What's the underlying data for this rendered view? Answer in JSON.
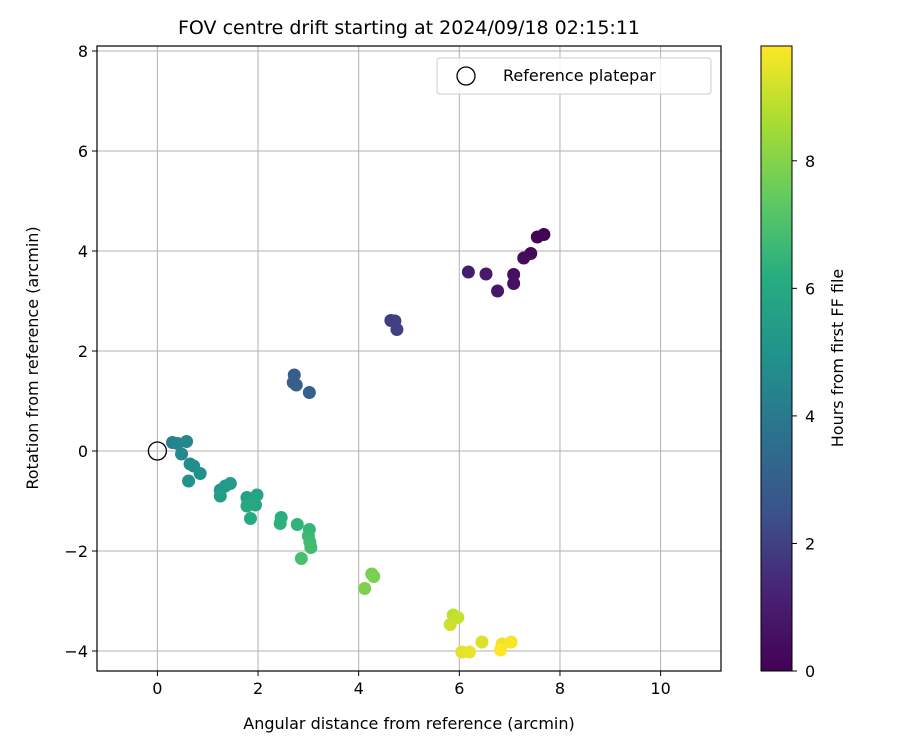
{
  "chart_data": {
    "type": "scatter",
    "title": "FOV centre drift starting at 2024/09/18 02:15:11",
    "xlabel": "Angular distance from reference (arcmin)",
    "ylabel": "Rotation from reference (arcmin)",
    "xlim": [
      -1.2,
      11.2
    ],
    "ylim": [
      -4.4,
      8.1
    ],
    "xticks": [
      0,
      2,
      4,
      6,
      8,
      10
    ],
    "yticks": [
      -4,
      -2,
      0,
      2,
      4,
      6,
      8
    ],
    "grid": true,
    "legend": {
      "placement": "top-right",
      "entries": [
        {
          "label": "Reference platepar",
          "marker": "open-circle"
        }
      ]
    },
    "reference_point": {
      "x": 0,
      "y": 0
    },
    "colorbar": {
      "label": "Hours from first FF file",
      "colormap": "viridis",
      "range": [
        0,
        9.8
      ],
      "ticks": [
        0,
        2,
        4,
        6,
        8
      ]
    },
    "points": [
      {
        "x": 7.68,
        "y": 4.33,
        "c": 0.05
      },
      {
        "x": 7.55,
        "y": 4.28,
        "c": 0.15
      },
      {
        "x": 7.42,
        "y": 3.95,
        "c": 0.3
      },
      {
        "x": 7.28,
        "y": 3.86,
        "c": 0.4
      },
      {
        "x": 7.08,
        "y": 3.53,
        "c": 0.5
      },
      {
        "x": 7.08,
        "y": 3.35,
        "c": 0.6
      },
      {
        "x": 6.76,
        "y": 3.2,
        "c": 0.8
      },
      {
        "x": 6.53,
        "y": 3.54,
        "c": 0.9
      },
      {
        "x": 6.18,
        "y": 3.58,
        "c": 1.0
      },
      {
        "x": 4.64,
        "y": 2.61,
        "c": 1.9
      },
      {
        "x": 4.72,
        "y": 2.6,
        "c": 1.95
      },
      {
        "x": 4.76,
        "y": 2.43,
        "c": 2.0
      },
      {
        "x": 2.72,
        "y": 1.52,
        "c": 2.9
      },
      {
        "x": 2.7,
        "y": 1.37,
        "c": 2.95
      },
      {
        "x": 2.76,
        "y": 1.32,
        "c": 3.0
      },
      {
        "x": 3.02,
        "y": 1.17,
        "c": 3.1
      },
      {
        "x": 0.3,
        "y": 0.17,
        "c": 4.3
      },
      {
        "x": 0.4,
        "y": 0.15,
        "c": 4.4
      },
      {
        "x": 0.58,
        "y": 0.19,
        "c": 4.5
      },
      {
        "x": 0.48,
        "y": -0.06,
        "c": 4.6
      },
      {
        "x": 0.65,
        "y": -0.26,
        "c": 4.7
      },
      {
        "x": 0.72,
        "y": -0.3,
        "c": 4.8
      },
      {
        "x": 0.85,
        "y": -0.45,
        "c": 4.9
      },
      {
        "x": 0.62,
        "y": -0.6,
        "c": 5.0
      },
      {
        "x": 1.25,
        "y": -0.78,
        "c": 5.2
      },
      {
        "x": 1.35,
        "y": -0.7,
        "c": 5.3
      },
      {
        "x": 1.45,
        "y": -0.65,
        "c": 5.4
      },
      {
        "x": 1.25,
        "y": -0.9,
        "c": 5.5
      },
      {
        "x": 1.78,
        "y": -0.93,
        "c": 5.6
      },
      {
        "x": 1.8,
        "y": -1.02,
        "c": 5.7
      },
      {
        "x": 1.98,
        "y": -0.88,
        "c": 5.8
      },
      {
        "x": 1.95,
        "y": -1.08,
        "c": 5.9
      },
      {
        "x": 1.85,
        "y": -1.35,
        "c": 6.0
      },
      {
        "x": 1.78,
        "y": -1.1,
        "c": 6.0
      },
      {
        "x": 2.46,
        "y": -1.33,
        "c": 6.2
      },
      {
        "x": 2.44,
        "y": -1.45,
        "c": 6.3
      },
      {
        "x": 2.78,
        "y": -1.47,
        "c": 6.4
      },
      {
        "x": 3.02,
        "y": -1.57,
        "c": 6.5
      },
      {
        "x": 3.0,
        "y": -1.7,
        "c": 6.6
      },
      {
        "x": 3.03,
        "y": -1.82,
        "c": 6.7
      },
      {
        "x": 3.05,
        "y": -1.93,
        "c": 6.8
      },
      {
        "x": 2.86,
        "y": -2.15,
        "c": 6.9
      },
      {
        "x": 4.26,
        "y": -2.46,
        "c": 7.7
      },
      {
        "x": 4.3,
        "y": -2.51,
        "c": 7.8
      },
      {
        "x": 4.12,
        "y": -2.75,
        "c": 7.9
      },
      {
        "x": 5.88,
        "y": -3.28,
        "c": 8.9
      },
      {
        "x": 5.97,
        "y": -3.33,
        "c": 9.0
      },
      {
        "x": 5.82,
        "y": -3.47,
        "c": 9.1
      },
      {
        "x": 6.45,
        "y": -3.82,
        "c": 9.3
      },
      {
        "x": 6.05,
        "y": -4.02,
        "c": 9.4
      },
      {
        "x": 6.2,
        "y": -4.02,
        "c": 9.5
      },
      {
        "x": 6.85,
        "y": -3.86,
        "c": 9.6
      },
      {
        "x": 7.03,
        "y": -3.82,
        "c": 9.7
      },
      {
        "x": 6.82,
        "y": -3.98,
        "c": 9.8
      }
    ]
  }
}
